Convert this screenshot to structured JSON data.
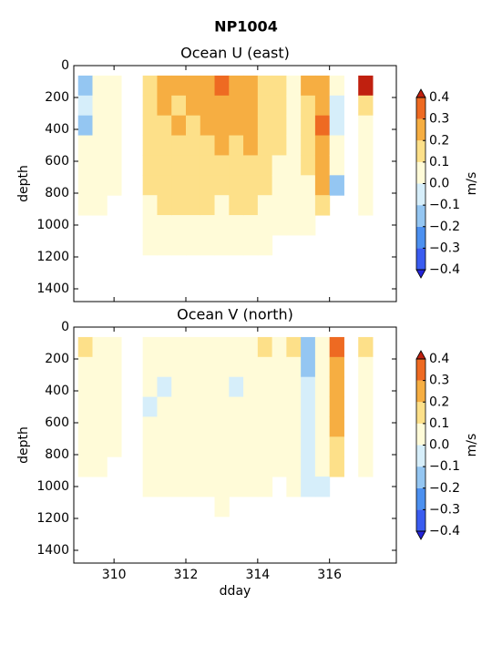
{
  "title": "NP1004",
  "chart_data": [
    {
      "type": "contourf",
      "title": "Ocean U (east)",
      "ylabel": "depth",
      "show_xticklabels": false,
      "xlim": [
        308.88,
        317.86
      ],
      "ylim": [
        1480,
        0
      ],
      "xticks": [
        310,
        312,
        314,
        316
      ],
      "yticks": [
        0,
        200,
        400,
        600,
        800,
        1000,
        1200,
        1400
      ],
      "x": [
        309.2,
        309.6,
        310.0,
        311.0,
        311.4,
        311.8,
        312.2,
        312.6,
        313.0,
        313.4,
        313.8,
        314.2,
        314.6,
        315.0,
        315.4,
        315.8,
        316.2,
        317.0
      ],
      "depths": [
        125,
        250,
        375,
        500,
        625,
        750,
        875,
        1000,
        1125
      ],
      "values": [
        [
          -0.1,
          -0.05,
          -0.1,
          0.05,
          0.05,
          0.05,
          0.05,
          null,
          null
        ],
        [
          0.05,
          0.05,
          0.1,
          0.05,
          0.05,
          0.1,
          0.1,
          null,
          null
        ],
        [
          0.05,
          0.05,
          0.05,
          0.05,
          0.05,
          0.05,
          null,
          null,
          null
        ],
        [
          0.2,
          0.15,
          0.15,
          0.15,
          0.15,
          0.15,
          0.1,
          0.1,
          0.1
        ],
        [
          0.25,
          0.25,
          0.2,
          0.2,
          0.15,
          0.15,
          0.15,
          0.1,
          0.1
        ],
        [
          0.25,
          0.2,
          0.25,
          0.2,
          0.2,
          0.15,
          0.15,
          0.1,
          0.05
        ],
        [
          0.25,
          0.25,
          0.2,
          0.2,
          0.15,
          0.15,
          0.15,
          0.1,
          0.05
        ],
        [
          0.3,
          0.25,
          0.25,
          0.2,
          0.2,
          0.15,
          0.15,
          0.1,
          0.05
        ],
        [
          0.35,
          0.3,
          0.25,
          0.25,
          0.2,
          0.15,
          0.1,
          0.1,
          0.05
        ],
        [
          0.25,
          0.3,
          0.25,
          0.2,
          0.2,
          0.15,
          0.15,
          0.1,
          0.05
        ],
        [
          0.3,
          0.25,
          0.25,
          0.25,
          0.2,
          0.2,
          0.15,
          0.1,
          0.05
        ],
        [
          0.2,
          0.2,
          0.2,
          0.15,
          0.15,
          0.15,
          0.1,
          0.05,
          0.05
        ],
        [
          0.15,
          0.15,
          0.15,
          0.15,
          0.1,
          0.1,
          0.05,
          0.05,
          null
        ],
        [
          0.1,
          0.05,
          0.05,
          0.05,
          0.05,
          0.05,
          0.05,
          0.05,
          null
        ],
        [
          0.25,
          0.2,
          0.2,
          0.15,
          0.15,
          0.1,
          0.1,
          0.05,
          null
        ],
        [
          0.3,
          0.3,
          0.35,
          0.3,
          0.3,
          0.25,
          0.2,
          null,
          null
        ],
        [
          0.05,
          -0.05,
          -0.05,
          0.05,
          0.05,
          -0.1,
          null,
          null,
          null
        ],
        [
          0.45,
          0.15,
          0.1,
          0.05,
          0.05,
          0.05,
          0.05,
          null,
          null
        ]
      ],
      "colorbar_label": "m/s",
      "colorbar_ticks": [
        {
          "value": -0.4,
          "label": "−0.4"
        },
        {
          "value": -0.3,
          "label": "−0.3"
        },
        {
          "value": -0.2,
          "label": "−0.2"
        },
        {
          "value": -0.1,
          "label": "−0.1"
        },
        {
          "value": 0,
          "label": "0.0"
        },
        0.1,
        0.2,
        0.3,
        0.4
      ],
      "colors": [
        "#3a5cf0",
        "#4c90f0",
        "#94c6f2",
        "#d6eefa",
        "#fffbd8",
        "#fde089",
        "#f6ae42",
        "#ee6a22"
      ],
      "under_color": "#2323d8",
      "over_color": "#c0200f"
    },
    {
      "type": "contourf",
      "title": "Ocean V (north)",
      "ylabel": "depth",
      "xlabel": "dday",
      "show_xticklabels": true,
      "xlim": [
        308.88,
        317.86
      ],
      "ylim": [
        1480,
        0
      ],
      "xticks": [
        310,
        312,
        314,
        316
      ],
      "yticks": [
        0,
        200,
        400,
        600,
        800,
        1000,
        1200,
        1400
      ],
      "x": [
        309.2,
        309.6,
        310.0,
        311.0,
        311.4,
        311.8,
        312.2,
        312.6,
        313.0,
        313.4,
        313.8,
        314.2,
        314.6,
        315.0,
        315.4,
        315.8,
        316.2,
        317.0
      ],
      "depths": [
        125,
        250,
        375,
        500,
        625,
        750,
        875,
        1000,
        1125
      ],
      "values": [
        [
          0.15,
          0.1,
          0.05,
          0.05,
          0.05,
          0.05,
          0.05,
          null,
          null
        ],
        [
          0.1,
          0.05,
          0.05,
          0.1,
          0.1,
          0.1,
          0.05,
          null,
          null
        ],
        [
          0.05,
          0.05,
          0.05,
          0.05,
          0.05,
          0.1,
          null,
          null,
          null
        ],
        [
          0.05,
          0.05,
          0.05,
          -0.05,
          0.05,
          0.05,
          0.05,
          0.05,
          null
        ],
        [
          0.05,
          0.05,
          -0.05,
          0.05,
          0.05,
          0.05,
          0.05,
          0.05,
          null
        ],
        [
          0.05,
          0.05,
          0.05,
          0.05,
          0.05,
          0.05,
          0.05,
          0.05,
          null
        ],
        [
          0.1,
          0.05,
          0.05,
          0.05,
          0.05,
          0.05,
          0.05,
          0.05,
          null
        ],
        [
          0.05,
          0.05,
          0.05,
          0.05,
          0.05,
          0.05,
          0.05,
          0.05,
          null
        ],
        [
          0.1,
          0.05,
          0.05,
          0.05,
          0.05,
          0.05,
          0.05,
          0.05,
          0.05
        ],
        [
          0.1,
          0.05,
          -0.05,
          0.05,
          0.05,
          0.05,
          0.05,
          0.05,
          null
        ],
        [
          0.1,
          0.05,
          0.05,
          0.05,
          0.05,
          0.05,
          0.05,
          0.05,
          null
        ],
        [
          0.15,
          0.1,
          0.05,
          0.05,
          0.05,
          0.05,
          0.05,
          0.05,
          null
        ],
        [
          0.1,
          0.1,
          0.05,
          0.05,
          0.05,
          0.05,
          0.05,
          null,
          null
        ],
        [
          0.15,
          0.1,
          0.1,
          0.05,
          0.05,
          0.05,
          0.05,
          0.05,
          null
        ],
        [
          -0.15,
          -0.1,
          -0.05,
          -0.05,
          -0.05,
          -0.05,
          -0.05,
          -0.05,
          null
        ],
        [
          0.1,
          0.1,
          0.05,
          0.05,
          0.05,
          0.05,
          0.05,
          -0.05,
          null
        ],
        [
          0.35,
          0.3,
          0.3,
          0.25,
          0.25,
          0.2,
          0.15,
          null,
          null
        ],
        [
          0.2,
          0.1,
          0.05,
          0.05,
          0.05,
          0.05,
          0.05,
          null,
          null
        ]
      ],
      "colorbar_label": "m/s",
      "colorbar_ticks": [
        {
          "value": -0.4,
          "label": "−0.4"
        },
        {
          "value": -0.3,
          "label": "−0.3"
        },
        {
          "value": -0.2,
          "label": "−0.2"
        },
        {
          "value": -0.1,
          "label": "−0.1"
        },
        {
          "value": 0,
          "label": "0.0"
        },
        0.1,
        0.2,
        0.3,
        0.4
      ],
      "colors": [
        "#3a5cf0",
        "#4c90f0",
        "#94c6f2",
        "#d6eefa",
        "#fffbd8",
        "#fde089",
        "#f6ae42",
        "#ee6a22"
      ],
      "under_color": "#2323d8",
      "over_color": "#c0200f"
    }
  ]
}
